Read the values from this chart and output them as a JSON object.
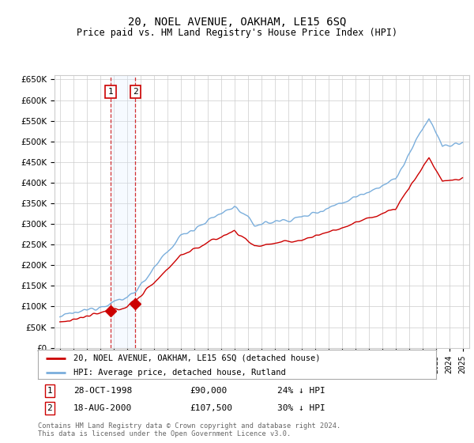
{
  "title": "20, NOEL AVENUE, OAKHAM, LE15 6SQ",
  "subtitle": "Price paid vs. HM Land Registry's House Price Index (HPI)",
  "legend_line1": "20, NOEL AVENUE, OAKHAM, LE15 6SQ (detached house)",
  "legend_line2": "HPI: Average price, detached house, Rutland",
  "footnote": "Contains HM Land Registry data © Crown copyright and database right 2024.\nThis data is licensed under the Open Government Licence v3.0.",
  "sale1_label": "1",
  "sale1_date": "28-OCT-1998",
  "sale1_price": 90000,
  "sale1_hpi_pct": "24% ↓ HPI",
  "sale2_label": "2",
  "sale2_date": "18-AUG-2000",
  "sale2_price": 107500,
  "sale2_hpi_pct": "30% ↓ HPI",
  "price_line_color": "#cc0000",
  "hpi_line_color": "#7aaedc",
  "sale_marker_color": "#cc0000",
  "vline_color": "#cc0000",
  "highlight_color": "#ddeeff",
  "grid_color": "#cccccc",
  "background_color": "#ffffff",
  "ylim_min": 0,
  "ylim_max": 660000,
  "sale1_x": 1998.79,
  "sale2_x": 2000.62
}
